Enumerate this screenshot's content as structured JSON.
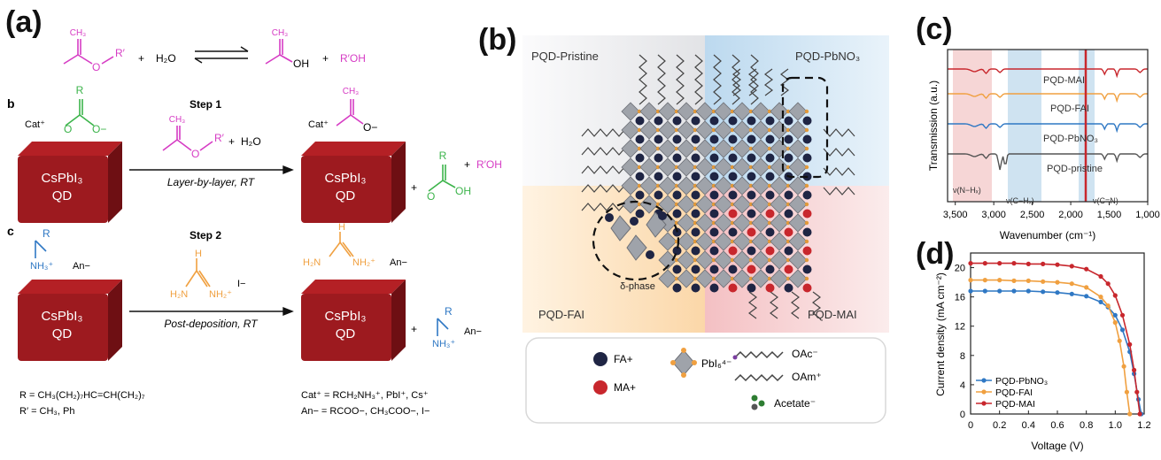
{
  "panel_labels": {
    "a": "(a)",
    "b": "(b)",
    "c": "(c)",
    "d": "(d)"
  },
  "panel_a": {
    "sub_b": "b",
    "sub_c": "c",
    "plus": "+",
    "h2o": "H₂O",
    "rprime_oh": "R′OH",
    "r": "R",
    "ch3": "CH₃",
    "rprime": "R′",
    "o": "O",
    "o_minus": "O−",
    "oh": "OH",
    "cat": "Cat⁺",
    "an_minus": "An−",
    "nh3": "NH₃⁺",
    "i_minus": "I−",
    "h": "H",
    "h2n": "H₂N",
    "nh2": "NH₂",
    "nh2_plus": "NH₂⁺",
    "qd_line1": "CsPbI₃",
    "qd_line2": "QD",
    "step1": "Step 1",
    "step1_condition": "Layer-by-layer, RT",
    "step2": "Step 2",
    "step2_condition": "Post-deposition, RT",
    "footnote_r": "R = CH₃(CH₂)₇HC=CH(CH₂)₇",
    "footnote_rprime": "R′ = CH₃, Ph",
    "footnote_cat": "Cat⁺ = RCH₂NH₃⁺, PbI⁺, Cs⁺",
    "footnote_an": "An− = RCOO−, CH₃COO−, I−"
  },
  "panel_b": {
    "quadrant_labels": {
      "top_left": "PQD-Pristine",
      "top_right": "PQD-PbNO₃",
      "bottom_left": "PQD-FAI",
      "bottom_right": "PQD-MAI"
    },
    "delta_phase": "δ-phase",
    "legend": {
      "fa": "FA+",
      "ma": "MA+",
      "pbi6": "PbI₆⁴⁻",
      "oac": "OAc⁻",
      "oam": "OAm⁺",
      "acetate": "Acetate⁻"
    },
    "colors": {
      "fa": "#1f2544",
      "ma": "#c8272d",
      "octahedron": "#9fa3aa",
      "ligand": "#444444",
      "acetate": "#2e7d32"
    }
  },
  "panel_c": {
    "ylabel": "Transmission (a.u.)",
    "xlabel": "Wavenumber (cm⁻¹)",
    "x_ticks": [
      "3,500",
      "3,000",
      "2,500",
      "2,000",
      "1,500",
      "1,000"
    ],
    "spectra": [
      {
        "name": "PQD-MAI",
        "color": "#c8272d"
      },
      {
        "name": "PQD-FAI",
        "color": "#f0a040"
      },
      {
        "name": "PQD-PbNO₃",
        "color": "#2f78c4"
      },
      {
        "name": "PQD-pristine",
        "color": "#555555"
      }
    ],
    "annotations": {
      "nh": "ν(N−Hₓ)",
      "ch": "ν(C−Hₓ)",
      "cn": "ν(C=N)"
    },
    "band_colors": {
      "nh": "#f6d6d6",
      "ch": "#cfe3f1",
      "cn": "#cfe3f1"
    }
  },
  "chart_data": {
    "type": "line",
    "xlabel": "Voltage (V)",
    "ylabel": "Current density (mA cm⁻²)",
    "xlim": [
      0,
      1.2
    ],
    "ylim": [
      0,
      22
    ],
    "x_ticks": [
      "0",
      "0.2",
      "0.4",
      "0.6",
      "0.8",
      "1.0",
      "1.2"
    ],
    "y_ticks": [
      "0",
      "4",
      "8",
      "12",
      "16",
      "20"
    ],
    "legend_position": "bottom-left",
    "series": [
      {
        "name": "PQD-PbNO₃",
        "color": "#2f78c4",
        "x": [
          0,
          0.1,
          0.2,
          0.3,
          0.4,
          0.5,
          0.6,
          0.7,
          0.8,
          0.9,
          0.95,
          1.0,
          1.05,
          1.1,
          1.13,
          1.16,
          1.18
        ],
        "y": [
          16.8,
          16.8,
          16.8,
          16.8,
          16.8,
          16.7,
          16.6,
          16.4,
          16.1,
          15.3,
          14.6,
          13.5,
          11.5,
          8.5,
          5.5,
          2.0,
          0
        ]
      },
      {
        "name": "PQD-FAI",
        "color": "#f0a040",
        "x": [
          0,
          0.1,
          0.2,
          0.3,
          0.4,
          0.5,
          0.6,
          0.7,
          0.8,
          0.9,
          0.95,
          1.0,
          1.03,
          1.06,
          1.08,
          1.1
        ],
        "y": [
          18.3,
          18.3,
          18.3,
          18.2,
          18.2,
          18.1,
          18.0,
          17.8,
          17.3,
          16.0,
          14.8,
          12.5,
          10.0,
          6.5,
          3.0,
          0
        ]
      },
      {
        "name": "PQD-MAI",
        "color": "#c8272d",
        "x": [
          0,
          0.1,
          0.2,
          0.3,
          0.4,
          0.5,
          0.6,
          0.7,
          0.8,
          0.9,
          0.95,
          1.0,
          1.05,
          1.1,
          1.13,
          1.15,
          1.17
        ],
        "y": [
          20.6,
          20.6,
          20.6,
          20.6,
          20.5,
          20.5,
          20.4,
          20.2,
          19.8,
          18.8,
          17.8,
          16.2,
          13.5,
          9.5,
          6.0,
          3.0,
          0
        ]
      }
    ]
  }
}
